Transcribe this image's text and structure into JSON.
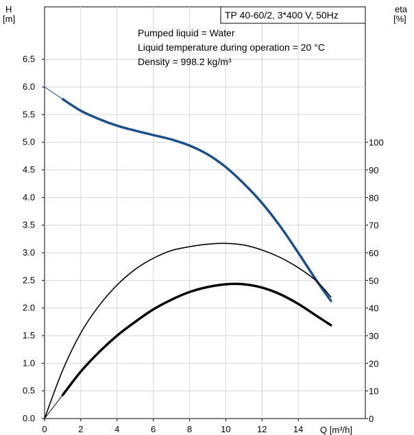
{
  "chart_data": {
    "type": "line",
    "title": "TP 40-60/2, 3*400 V, 50Hz",
    "annotations": [
      "Pumped liquid = Water",
      "Liquid temperature during operation = 20 °C",
      "Density = 998.2 kg/m³"
    ],
    "x_axis": {
      "label": "Q [m³/h]",
      "range": [
        0,
        17.7
      ],
      "ticks": [
        0,
        2,
        4,
        6,
        8,
        10,
        12,
        14
      ]
    },
    "y_axis_left": {
      "label_line1": "H",
      "label_line2": "[m]",
      "range": [
        0,
        7.45
      ],
      "ticks": [
        0.0,
        0.5,
        1.0,
        1.5,
        2.0,
        2.5,
        3.0,
        3.5,
        4.0,
        4.5,
        5.0,
        5.5,
        6.0,
        6.5
      ],
      "tick_labels": [
        "0.0",
        "0.5",
        "1.0",
        "1.5",
        "2.0",
        "2.5",
        "3.0",
        "3.5",
        "4.0",
        "4.5",
        "5.0",
        "5.5",
        "6.0",
        "6.5"
      ]
    },
    "y_axis_right": {
      "label_line1": "eta",
      "label_line2": "[%]",
      "range": [
        0,
        149
      ],
      "ticks": [
        0,
        10,
        20,
        30,
        40,
        50,
        60,
        70,
        80,
        90,
        100
      ],
      "tick_labels": [
        "0",
        "10",
        "20",
        "30",
        "40",
        "50",
        "60",
        "70",
        "80",
        "90",
        "100"
      ]
    },
    "grid": true,
    "series": [
      {
        "axis": "left",
        "color": "#1a4f8b",
        "style": "thick",
        "x": [
          0,
          1,
          2,
          3,
          4,
          5,
          6,
          7,
          8,
          9,
          10,
          11,
          12,
          13,
          14,
          15,
          15.8
        ],
        "values": [
          6.0,
          5.78,
          5.57,
          5.42,
          5.3,
          5.21,
          5.13,
          5.05,
          4.94,
          4.78,
          4.55,
          4.25,
          3.9,
          3.48,
          3.0,
          2.5,
          2.13
        ]
      },
      {
        "axis": "right",
        "color": "#000000",
        "style": "thin",
        "x": [
          0,
          1,
          2,
          3,
          4,
          5,
          6,
          7,
          8,
          9,
          10,
          11,
          12,
          13,
          14,
          15,
          15.8
        ],
        "values": [
          0,
          17.5,
          31,
          40.8,
          48.3,
          54,
          58,
          60.8,
          62.2,
          63.1,
          63.4,
          62.8,
          61,
          58.3,
          54.6,
          49.8,
          44
        ]
      },
      {
        "axis": "right",
        "color": "#000000",
        "style": "thick",
        "x": [
          1,
          2,
          3,
          4,
          5,
          6,
          7,
          8,
          9,
          10,
          11,
          12,
          13,
          14,
          15,
          15.8
        ],
        "values": [
          8.5,
          17,
          24,
          30,
          35,
          39.5,
          43,
          45.8,
          47.6,
          48.6,
          48.6,
          47.4,
          45,
          41.5,
          37.2,
          33.8
        ]
      }
    ]
  }
}
